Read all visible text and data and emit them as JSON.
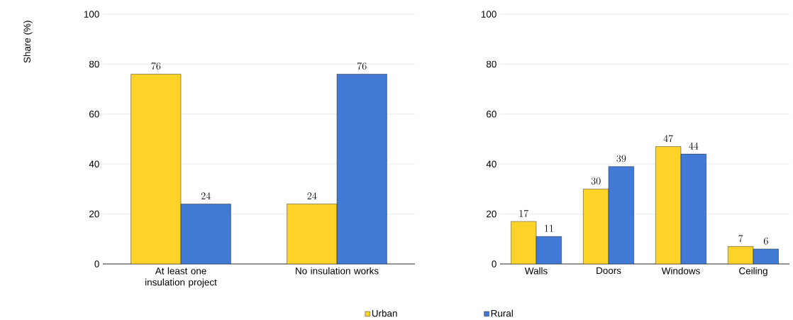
{
  "chart_data": [
    {
      "type": "bar",
      "ylabel": "Share (%)",
      "categories": [
        "At least one insulation project",
        "No insulation works"
      ],
      "series": [
        {
          "name": "Urban",
          "color": "#fdd327",
          "values": [
            76,
            24
          ]
        },
        {
          "name": "Rural",
          "color": "#4279d4",
          "values": [
            24,
            76
          ]
        }
      ],
      "ylim": [
        0,
        100
      ],
      "yticks": [
        0,
        20,
        40,
        60,
        80,
        100
      ],
      "grid": "y",
      "data_labels": true,
      "legend": "bottom"
    },
    {
      "type": "bar",
      "categories": [
        "Walls",
        "Doors",
        "Windows",
        "Ceiling"
      ],
      "series": [
        {
          "color": "#fdd327",
          "values": [
            17,
            30,
            47,
            7
          ]
        },
        {
          "color": "#4279d4",
          "values": [
            11,
            39,
            44,
            6
          ]
        }
      ],
      "ylim": [
        0,
        100
      ],
      "yticks": [
        0,
        20,
        40,
        60,
        80,
        100
      ],
      "grid": "y",
      "data_labels": true
    }
  ]
}
